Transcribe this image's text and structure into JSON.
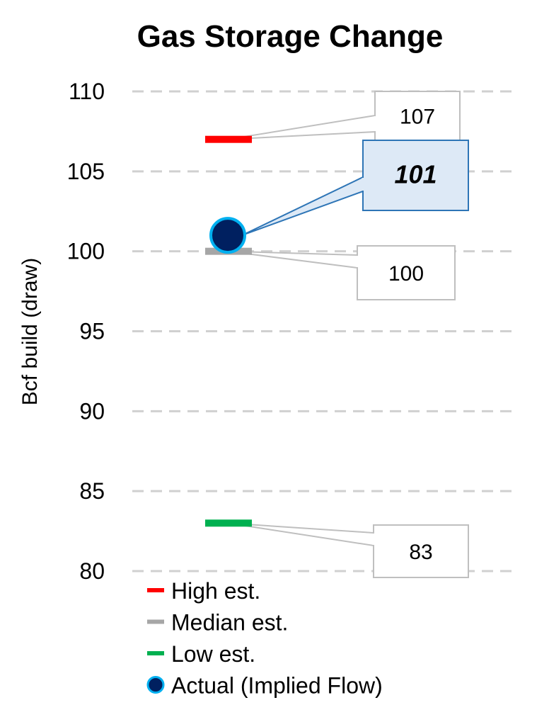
{
  "chart_data": {
    "type": "scatter",
    "title": "Gas Storage Change",
    "xlabel": "",
    "ylabel": "Bcf build (draw)",
    "ylim": [
      80,
      110
    ],
    "yticks": [
      "80",
      "85",
      "90",
      "95",
      "100",
      "105",
      "110"
    ],
    "grid": true,
    "legend_position": "bottom-left",
    "series": [
      {
        "name": "High est.",
        "value": 107,
        "label": "107",
        "marker": "dash",
        "color": "#ff0000"
      },
      {
        "name": "Median est.",
        "value": 100,
        "label": "100",
        "marker": "dash",
        "color": "#a6a6a6"
      },
      {
        "name": "Low est.",
        "value": 83,
        "label": "83",
        "marker": "dash",
        "color": "#00b050"
      },
      {
        "name": "Actual (Implied Flow)",
        "value": 101,
        "label": "101",
        "marker": "circle",
        "color": "#002060",
        "edge_color": "#00b0f0"
      }
    ]
  }
}
